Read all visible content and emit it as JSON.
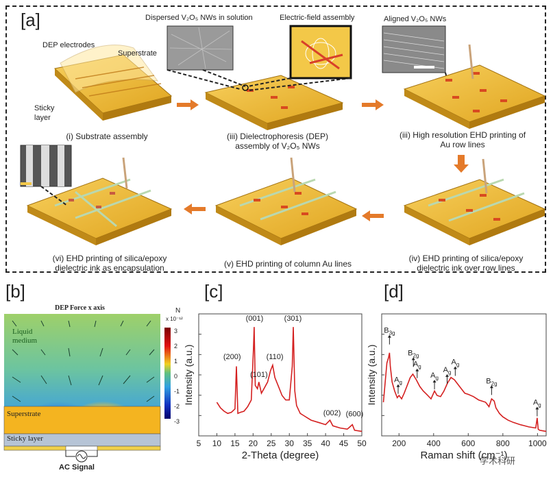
{
  "panel_a": {
    "label": "[a]",
    "top_labels": {
      "dispersed": "Dispersed V₂O₅ NWs in solution",
      "field_assembly": "Electric-field assembly",
      "aligned": "Aligned V₂O₅ NWs",
      "dep_electrodes": "DEP electrodes",
      "superstrate": "Superstrate",
      "sticky_1": "Sticky",
      "sticky_2": "layer"
    },
    "steps": [
      {
        "line1": "(i) Substrate assembly",
        "line2": ""
      },
      {
        "line1": "(iii) Dielectrophoresis (DEP)",
        "line2": "assembly of V₂O₅ NWs"
      },
      {
        "line1": "(iii) High resolution EHD printing of",
        "line2": "Au row lines"
      },
      {
        "line1": "(iv) EHD printing of silica/epoxy",
        "line2": "dielectric ink over row lines"
      },
      {
        "line1": "(v) EHD printing of column Au lines",
        "line2": ""
      },
      {
        "line1": "(vi) EHD printing of silica/epoxy",
        "line2": "dielectric ink as encapsulation"
      }
    ]
  },
  "panel_b": {
    "label": "[b]",
    "title": "DEP Force x axis",
    "liquid_1": "Liquid",
    "liquid_2": "medium",
    "superstrate": "Superstrate",
    "sticky": "Sticky layer",
    "ac": "AC Signal",
    "colorbar_unit": "N",
    "colorbar_exp": "x 10⁻¹²",
    "colorbar_ticks": [
      "3",
      "2",
      "1",
      "0",
      "-1",
      "-2",
      "-3"
    ]
  },
  "chart_data": [
    {
      "type": "line",
      "panel": "[c]",
      "xlabel": "2-Theta (degree)",
      "ylabel": "Intensity (a.u.)",
      "xlim": [
        5,
        50
      ],
      "xticks": [
        "5",
        "10",
        "15",
        "20",
        "25",
        "30",
        "35",
        "40",
        "45",
        "50"
      ],
      "color": "#d42020",
      "x": [
        10,
        11,
        12,
        13,
        14,
        15,
        15.4,
        15.8,
        16.5,
        17.5,
        18.5,
        19.5,
        20.1,
        20.3,
        20.6,
        21.2,
        21.6,
        22.3,
        23,
        24,
        24.8,
        25.4,
        26,
        27,
        28,
        29,
        30,
        30.8,
        31.1,
        31.5,
        32,
        33,
        34,
        35,
        36,
        38,
        40,
        41.2,
        42,
        44,
        46,
        47.4,
        48,
        50
      ],
      "y": [
        0.3,
        0.25,
        0.22,
        0.2,
        0.21,
        0.24,
        0.62,
        0.2,
        0.21,
        0.22,
        0.26,
        0.32,
        0.78,
        0.97,
        0.45,
        0.42,
        0.48,
        0.38,
        0.42,
        0.48,
        0.58,
        0.63,
        0.52,
        0.44,
        0.36,
        0.32,
        0.32,
        0.62,
        0.97,
        0.4,
        0.27,
        0.2,
        0.18,
        0.16,
        0.14,
        0.12,
        0.1,
        0.14,
        0.09,
        0.07,
        0.06,
        0.1,
        0.05,
        0.04
      ],
      "peaks": [
        {
          "label": "(200)",
          "x": 14.2,
          "y": 0.66
        },
        {
          "label": "(001)",
          "x": 20.4,
          "y": 1.0
        },
        {
          "label": "(101)",
          "x": 21.6,
          "y": 0.5
        },
        {
          "label": "(110)",
          "x": 26.0,
          "y": 0.66
        },
        {
          "label": "(301)",
          "x": 31.0,
          "y": 1.0
        },
        {
          "label": "(002)",
          "x": 41.8,
          "y": 0.16
        },
        {
          "label": "(600)",
          "x": 48.0,
          "y": 0.15
        }
      ]
    },
    {
      "type": "line",
      "panel": "[d]",
      "xlabel": "Raman shift (cm⁻¹)",
      "ylabel": "Intensity (a.u.)",
      "xlim": [
        100,
        1050
      ],
      "xticks": [
        "200",
        "400",
        "600",
        "800",
        "1000"
      ],
      "xtick_values": [
        200,
        400,
        600,
        800,
        1000
      ],
      "color": "#d42020",
      "x": [
        110,
        130,
        140,
        145,
        150,
        160,
        175,
        190,
        200,
        215,
        230,
        250,
        265,
        280,
        300,
        320,
        340,
        360,
        385,
        405,
        420,
        440,
        460,
        480,
        500,
        520,
        540,
        560,
        580,
        600,
        630,
        660,
        700,
        720,
        735,
        750,
        760,
        780,
        800,
        830,
        860,
        900,
        950,
        990,
        998,
        1004,
        1012,
        1030,
        1050
      ],
      "y": [
        0.3,
        0.65,
        0.7,
        0.74,
        0.62,
        0.48,
        0.4,
        0.34,
        0.36,
        0.33,
        0.38,
        0.46,
        0.52,
        0.55,
        0.5,
        0.44,
        0.4,
        0.37,
        0.33,
        0.4,
        0.36,
        0.35,
        0.4,
        0.47,
        0.52,
        0.5,
        0.46,
        0.42,
        0.38,
        0.37,
        0.35,
        0.32,
        0.3,
        0.26,
        0.33,
        0.31,
        0.25,
        0.2,
        0.17,
        0.14,
        0.12,
        0.1,
        0.08,
        0.07,
        0.16,
        0.06,
        0.05,
        0.045,
        0.04
      ],
      "peaks": [
        {
          "label": "B",
          "sub": "3g",
          "x": 145,
          "y": 0.9
        },
        {
          "label": "A",
          "sub": "g",
          "x": 195,
          "y": 0.46
        },
        {
          "label": "B",
          "sub": "2g",
          "x": 283,
          "y": 0.7
        },
        {
          "label": "A",
          "sub": "g",
          "x": 305,
          "y": 0.6
        },
        {
          "label": "A",
          "sub": "g",
          "x": 405,
          "y": 0.5
        },
        {
          "label": "A",
          "sub": "g",
          "x": 478,
          "y": 0.55
        },
        {
          "label": "A",
          "sub": "g",
          "x": 525,
          "y": 0.62
        },
        {
          "label": "B",
          "sub": "2g",
          "x": 735,
          "y": 0.45
        },
        {
          "label": "A",
          "sub": "g",
          "x": 998,
          "y": 0.26
        }
      ]
    }
  ],
  "panel_c": {
    "label": "[c]"
  },
  "panel_d": {
    "label": "[d]"
  },
  "watermark": "学术科研"
}
